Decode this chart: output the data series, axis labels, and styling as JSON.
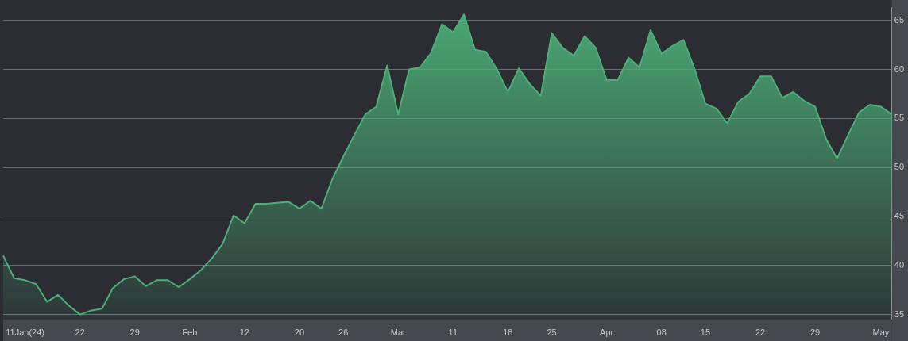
{
  "chart_data": {
    "type": "area",
    "categories": [
      null,
      null,
      "11Jan(24)",
      null,
      null,
      null,
      null,
      "22",
      null,
      null,
      null,
      null,
      "29",
      null,
      null,
      null,
      null,
      "Feb",
      null,
      null,
      null,
      null,
      "12",
      null,
      null,
      null,
      null,
      "20",
      null,
      null,
      null,
      "26",
      null,
      null,
      null,
      null,
      "Mar",
      null,
      null,
      null,
      null,
      "11",
      null,
      null,
      null,
      null,
      "18",
      null,
      null,
      null,
      "25",
      null,
      null,
      null,
      null,
      "Apr",
      null,
      null,
      null,
      null,
      "08",
      null,
      null,
      null,
      "15",
      null,
      null,
      null,
      null,
      "22",
      null,
      null,
      null,
      null,
      "29",
      null,
      null,
      null,
      null,
      null,
      "May",
      null
    ],
    "series": [
      {
        "color": "#4caf78",
        "values": [
          41.0,
          38.7,
          38.5,
          38.1,
          36.3,
          37.0,
          35.9,
          35.0,
          35.4,
          35.6,
          37.7,
          38.6,
          38.9,
          37.9,
          38.5,
          38.5,
          37.8,
          38.6,
          39.5,
          40.7,
          42.2,
          45.1,
          44.3,
          46.3,
          46.3,
          46.4,
          46.5,
          45.8,
          46.6,
          45.8,
          48.8,
          51.1,
          53.3,
          55.4,
          56.2,
          60.4,
          55.4,
          60.0,
          60.2,
          61.7,
          64.6,
          63.8,
          65.6,
          62.0,
          61.8,
          60.0,
          57.7,
          60.1,
          58.5,
          57.3,
          63.7,
          62.2,
          61.4,
          63.4,
          62.2,
          58.9,
          58.9,
          61.2,
          60.2,
          64.0,
          61.6,
          62.4,
          63.0,
          60.1,
          56.5,
          56.0,
          54.5,
          56.7,
          57.5,
          59.3,
          59.3,
          57.1,
          57.7,
          56.8,
          56.2,
          52.9,
          50.9,
          53.3,
          55.6,
          56.4,
          56.2,
          55.4
        ]
      }
    ],
    "ylim": [
      34.5,
      66.3
    ],
    "yticks": [
      35,
      40,
      45,
      50,
      55,
      60,
      65
    ],
    "grid": "y",
    "legend": false,
    "marker": "none",
    "line_style": "solid"
  }
}
